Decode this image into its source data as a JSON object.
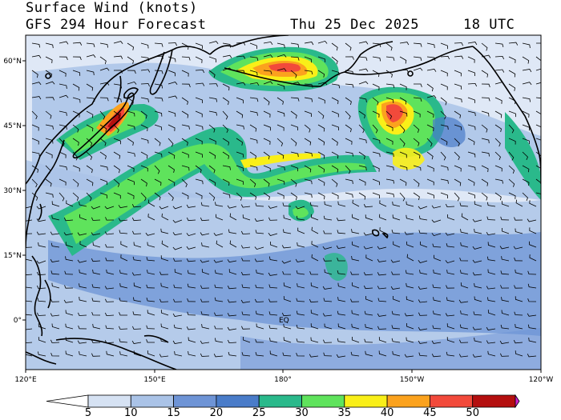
{
  "header": {
    "title": "Surface Wind (knots)",
    "model_line": "GFS 294 Hour Forecast",
    "date": "Thu 25 Dec 2025",
    "time": "18 UTC"
  },
  "map": {
    "lat_ticks": [
      "60°N",
      "45°N",
      "30°N",
      "15°N",
      "0°"
    ],
    "lon_ticks": [
      "120°E",
      "150°E",
      "180°",
      "150°W",
      "120°W"
    ],
    "equator_label": "EQ",
    "colors": {
      "land_line": "#000000",
      "low": "#f4f6fb"
    }
  },
  "colorbar": {
    "labels": [
      "5",
      "10",
      "15",
      "20",
      "25",
      "30",
      "35",
      "40",
      "45",
      "50"
    ],
    "colors": [
      "#d6e2f3",
      "#aac3e7",
      "#6e94d6",
      "#4a7cc9",
      "#2ab98b",
      "#5fe35c",
      "#f9ef18",
      "#fba21e",
      "#f24a3b",
      "#b40f0f",
      "#cc22cc"
    ]
  }
}
